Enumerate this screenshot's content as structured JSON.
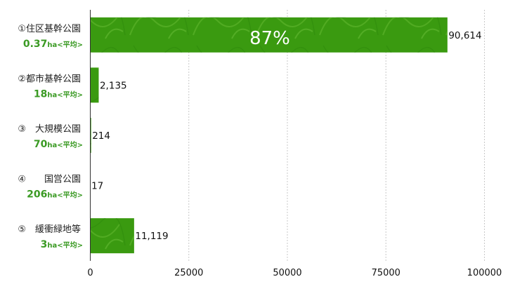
{
  "chart_data": {
    "type": "bar",
    "orientation": "horizontal",
    "categories": [
      {
        "name": "①住区基幹公園",
        "avg_value": "0.37",
        "avg_unit": "ha<平均>"
      },
      {
        "name": "②都市基幹公園",
        "avg_value": "18",
        "avg_unit": "ha<平均>"
      },
      {
        "name": "③　大規模公園",
        "avg_value": "70",
        "avg_unit": "ha<平均>"
      },
      {
        "name": "④　　国営公園",
        "avg_value": "206",
        "avg_unit": "ha<平均>"
      },
      {
        "name": "⑤　緩衝緑地等",
        "avg_value": "3",
        "avg_unit": "ha<平均>"
      }
    ],
    "values": [
      90614,
      2135,
      214,
      17,
      11119
    ],
    "value_labels": [
      "90,614",
      "2,135",
      "214",
      "17",
      "11,119"
    ],
    "annotation": "87%",
    "xlim": [
      0,
      100000
    ],
    "xticks": [
      "0",
      "25000",
      "50000",
      "75000",
      "100000"
    ],
    "xtick_values": [
      0,
      25000,
      50000,
      75000,
      100000
    ],
    "grid": "vertical dashed",
    "colors": {
      "bar": "#3a9a10",
      "avg_text": "#3a9a23",
      "grid": "#c8c8c8",
      "axis": "#333333"
    }
  }
}
